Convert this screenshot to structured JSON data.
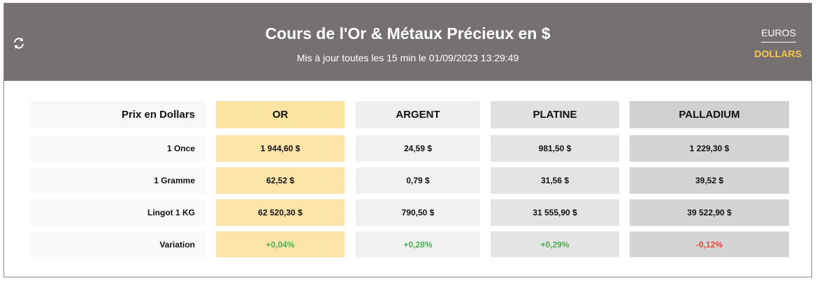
{
  "header": {
    "title": "Cours de l'Or & Métaux Précieux en $",
    "subtitle": "Mis à jour toutes les 15 min le 01/09/2023 13:29:49",
    "currencies": [
      "EUROS",
      "DOLLARS"
    ]
  },
  "table": {
    "columns": [
      "Prix en Dollars",
      "OR",
      "ARGENT",
      "PLATINE",
      "PALLADIUM"
    ],
    "rows": [
      [
        "1 Once",
        "1 944,60 $",
        "24,59 $",
        "981,50 $",
        "1 229,30 $"
      ],
      [
        "1 Gramme",
        "62,52 $",
        "0,79 $",
        "31,56 $",
        "39,52 $"
      ],
      [
        "Lingot 1 KG",
        "62 520,30 $",
        "790,50 $",
        "31 555,90 $",
        "39 522,90 $"
      ],
      [
        "Variation",
        "+0,04%",
        "+0,28%",
        "+0,29%",
        "-0,12%"
      ]
    ]
  }
}
